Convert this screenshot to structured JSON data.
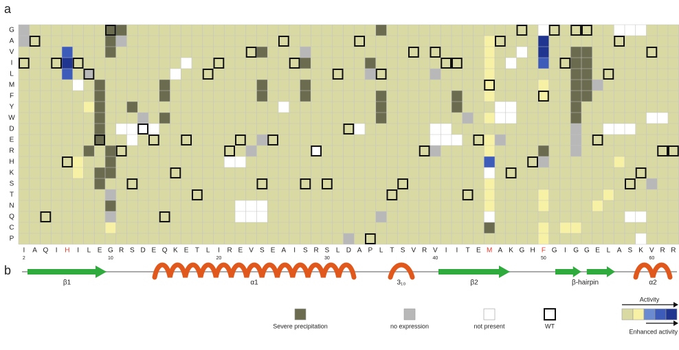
{
  "chart_data": {
    "type": "heatmap",
    "panel_labels": [
      "a",
      "b"
    ],
    "rows": [
      "G",
      "A",
      "V",
      "I",
      "L",
      "M",
      "F",
      "Y",
      "W",
      "D",
      "E",
      "R",
      "H",
      "K",
      "S",
      "T",
      "N",
      "Q",
      "C",
      "P"
    ],
    "sequence": [
      "I",
      "A",
      "Q",
      "I",
      "H",
      "I",
      "L",
      "E",
      "G",
      "R",
      "S",
      "D",
      "E",
      "Q",
      "K",
      "E",
      "T",
      "L",
      "I",
      "R",
      "E",
      "V",
      "S",
      "E",
      "A",
      "I",
      "S",
      "R",
      "S",
      "L",
      "D",
      "A",
      "P",
      "L",
      "T",
      "S",
      "V",
      "R",
      "V",
      "I",
      "I",
      "T",
      "E",
      "M",
      "A",
      "K",
      "G",
      "H",
      "F",
      "G",
      "I",
      "G",
      "G",
      "E",
      "L",
      "A",
      "S",
      "K",
      "V",
      "R",
      "R"
    ],
    "red_residues": [
      4,
      43,
      48
    ],
    "red_color": "#e8392b",
    "position_ticks": [
      2,
      10,
      20,
      30,
      40,
      50,
      60
    ],
    "default_color": "#d9d9a3",
    "states": [
      "#6b6b4f",
      "#b8b8b8",
      "#ffffff",
      "#f7f1a6",
      "#6a8bd0",
      "#3d5bb8",
      "#1f3590"
    ],
    "cells": [
      [
        0,
        0,
        1
      ],
      [
        1,
        0,
        1
      ],
      [
        0,
        8,
        0
      ],
      [
        1,
        8,
        0
      ],
      [
        2,
        8,
        0
      ],
      [
        0,
        9,
        0
      ],
      [
        1,
        9,
        1
      ],
      [
        2,
        4,
        5
      ],
      [
        3,
        4,
        6
      ],
      [
        4,
        4,
        5
      ],
      [
        5,
        5,
        2
      ],
      [
        4,
        6,
        1
      ],
      [
        5,
        7,
        0
      ],
      [
        6,
        7,
        0
      ],
      [
        7,
        7,
        0
      ],
      [
        8,
        7,
        0
      ],
      [
        9,
        7,
        0
      ],
      [
        10,
        7,
        0
      ],
      [
        11,
        6,
        0
      ],
      [
        13,
        7,
        0
      ],
      [
        14,
        7,
        0
      ],
      [
        15,
        8,
        1
      ],
      [
        16,
        8,
        0
      ],
      [
        17,
        8,
        1
      ],
      [
        18,
        8,
        3
      ],
      [
        12,
        8,
        0
      ],
      [
        13,
        8,
        0
      ],
      [
        11,
        8,
        0
      ],
      [
        7,
        6,
        3
      ],
      [
        12,
        5,
        3
      ],
      [
        13,
        5,
        3
      ],
      [
        5,
        13,
        0
      ],
      [
        6,
        13,
        0
      ],
      [
        8,
        13,
        0
      ],
      [
        4,
        14,
        2
      ],
      [
        3,
        15,
        2
      ],
      [
        9,
        9,
        2
      ],
      [
        9,
        10,
        2
      ],
      [
        9,
        11,
        2
      ],
      [
        9,
        12,
        2
      ],
      [
        10,
        10,
        2
      ],
      [
        7,
        10,
        0
      ],
      [
        8,
        11,
        1
      ],
      [
        2,
        22,
        0
      ],
      [
        5,
        22,
        0
      ],
      [
        6,
        22,
        0
      ],
      [
        10,
        22,
        1
      ],
      [
        16,
        20,
        2
      ],
      [
        16,
        21,
        2
      ],
      [
        16,
        22,
        2
      ],
      [
        17,
        20,
        2
      ],
      [
        17,
        21,
        2
      ],
      [
        17,
        22,
        2
      ],
      [
        12,
        19,
        2
      ],
      [
        12,
        20,
        2
      ],
      [
        11,
        21,
        1
      ],
      [
        3,
        26,
        0
      ],
      [
        5,
        26,
        0
      ],
      [
        6,
        26,
        0
      ],
      [
        2,
        26,
        1
      ],
      [
        7,
        24,
        2
      ],
      [
        11,
        27,
        2
      ],
      [
        0,
        33,
        0
      ],
      [
        7,
        33,
        0
      ],
      [
        8,
        33,
        0
      ],
      [
        6,
        33,
        0
      ],
      [
        3,
        32,
        0
      ],
      [
        4,
        32,
        1
      ],
      [
        9,
        31,
        2
      ],
      [
        17,
        33,
        1
      ],
      [
        19,
        30,
        1
      ],
      [
        6,
        40,
        0
      ],
      [
        7,
        40,
        0
      ],
      [
        8,
        41,
        1
      ],
      [
        9,
        38,
        2
      ],
      [
        9,
        39,
        2
      ],
      [
        10,
        38,
        2
      ],
      [
        10,
        39,
        2
      ],
      [
        10,
        40,
        2
      ],
      [
        11,
        38,
        1
      ],
      [
        4,
        38,
        1
      ],
      [
        1,
        43,
        3
      ],
      [
        2,
        43,
        3
      ],
      [
        3,
        43,
        3
      ],
      [
        4,
        43,
        3
      ],
      [
        5,
        43,
        3
      ],
      [
        6,
        43,
        3
      ],
      [
        8,
        43,
        3
      ],
      [
        10,
        43,
        3
      ],
      [
        11,
        43,
        3
      ],
      [
        12,
        43,
        5
      ],
      [
        13,
        43,
        2
      ],
      [
        14,
        43,
        3
      ],
      [
        15,
        43,
        3
      ],
      [
        16,
        43,
        3
      ],
      [
        17,
        43,
        2
      ],
      [
        18,
        43,
        0
      ],
      [
        7,
        44,
        2
      ],
      [
        7,
        45,
        2
      ],
      [
        8,
        44,
        2
      ],
      [
        8,
        45,
        2
      ],
      [
        10,
        44,
        1
      ],
      [
        3,
        45,
        2
      ],
      [
        2,
        46,
        2
      ],
      [
        1,
        48,
        6
      ],
      [
        2,
        48,
        6
      ],
      [
        3,
        48,
        5
      ],
      [
        0,
        48,
        2
      ],
      [
        5,
        48,
        3
      ],
      [
        6,
        48,
        3
      ],
      [
        15,
        48,
        3
      ],
      [
        16,
        48,
        3
      ],
      [
        18,
        48,
        3
      ],
      [
        19,
        48,
        3
      ],
      [
        11,
        48,
        0
      ],
      [
        12,
        48,
        1
      ],
      [
        2,
        51,
        0
      ],
      [
        3,
        51,
        0
      ],
      [
        4,
        51,
        0
      ],
      [
        5,
        51,
        0
      ],
      [
        6,
        51,
        0
      ],
      [
        7,
        51,
        0
      ],
      [
        8,
        51,
        0
      ],
      [
        4,
        52,
        0
      ],
      [
        5,
        52,
        0
      ],
      [
        6,
        52,
        0
      ],
      [
        3,
        52,
        0
      ],
      [
        2,
        52,
        0
      ],
      [
        9,
        51,
        1
      ],
      [
        10,
        51,
        1
      ],
      [
        11,
        51,
        1
      ],
      [
        5,
        53,
        1
      ],
      [
        0,
        55,
        2
      ],
      [
        0,
        56,
        2
      ],
      [
        0,
        57,
        2
      ],
      [
        9,
        54,
        2
      ],
      [
        9,
        55,
        2
      ],
      [
        9,
        56,
        2
      ],
      [
        8,
        58,
        2
      ],
      [
        8,
        59,
        2
      ],
      [
        12,
        55,
        3
      ],
      [
        15,
        54,
        3
      ],
      [
        16,
        53,
        3
      ],
      [
        18,
        50,
        3
      ],
      [
        18,
        51,
        3
      ],
      [
        14,
        58,
        1
      ],
      [
        17,
        56,
        2
      ],
      [
        17,
        57,
        2
      ],
      [
        19,
        57,
        2
      ]
    ],
    "legend": [
      {
        "label": "Severe precipitation",
        "state": 0
      },
      {
        "label": "no expression",
        "state": 1
      },
      {
        "label": "not present",
        "state": 2
      },
      {
        "label": "WT"
      }
    ],
    "activity_label": "Activity",
    "enhanced_label": "Enhanced activity",
    "activity_states": [
      3,
      4,
      5,
      6
    ],
    "structure": [
      {
        "label": "β1",
        "kind": "strand"
      },
      {
        "label": "α1",
        "kind": "helix"
      },
      {
        "label": "3₁₀",
        "kind": "helix"
      },
      {
        "label": "β2",
        "kind": "strand"
      },
      {
        "label": "β-hairpin",
        "kind": "hairpin"
      },
      {
        "label": "α2",
        "kind": "helix"
      }
    ],
    "strand_color": "#2faa3c",
    "helix_color": "#e0581c"
  }
}
